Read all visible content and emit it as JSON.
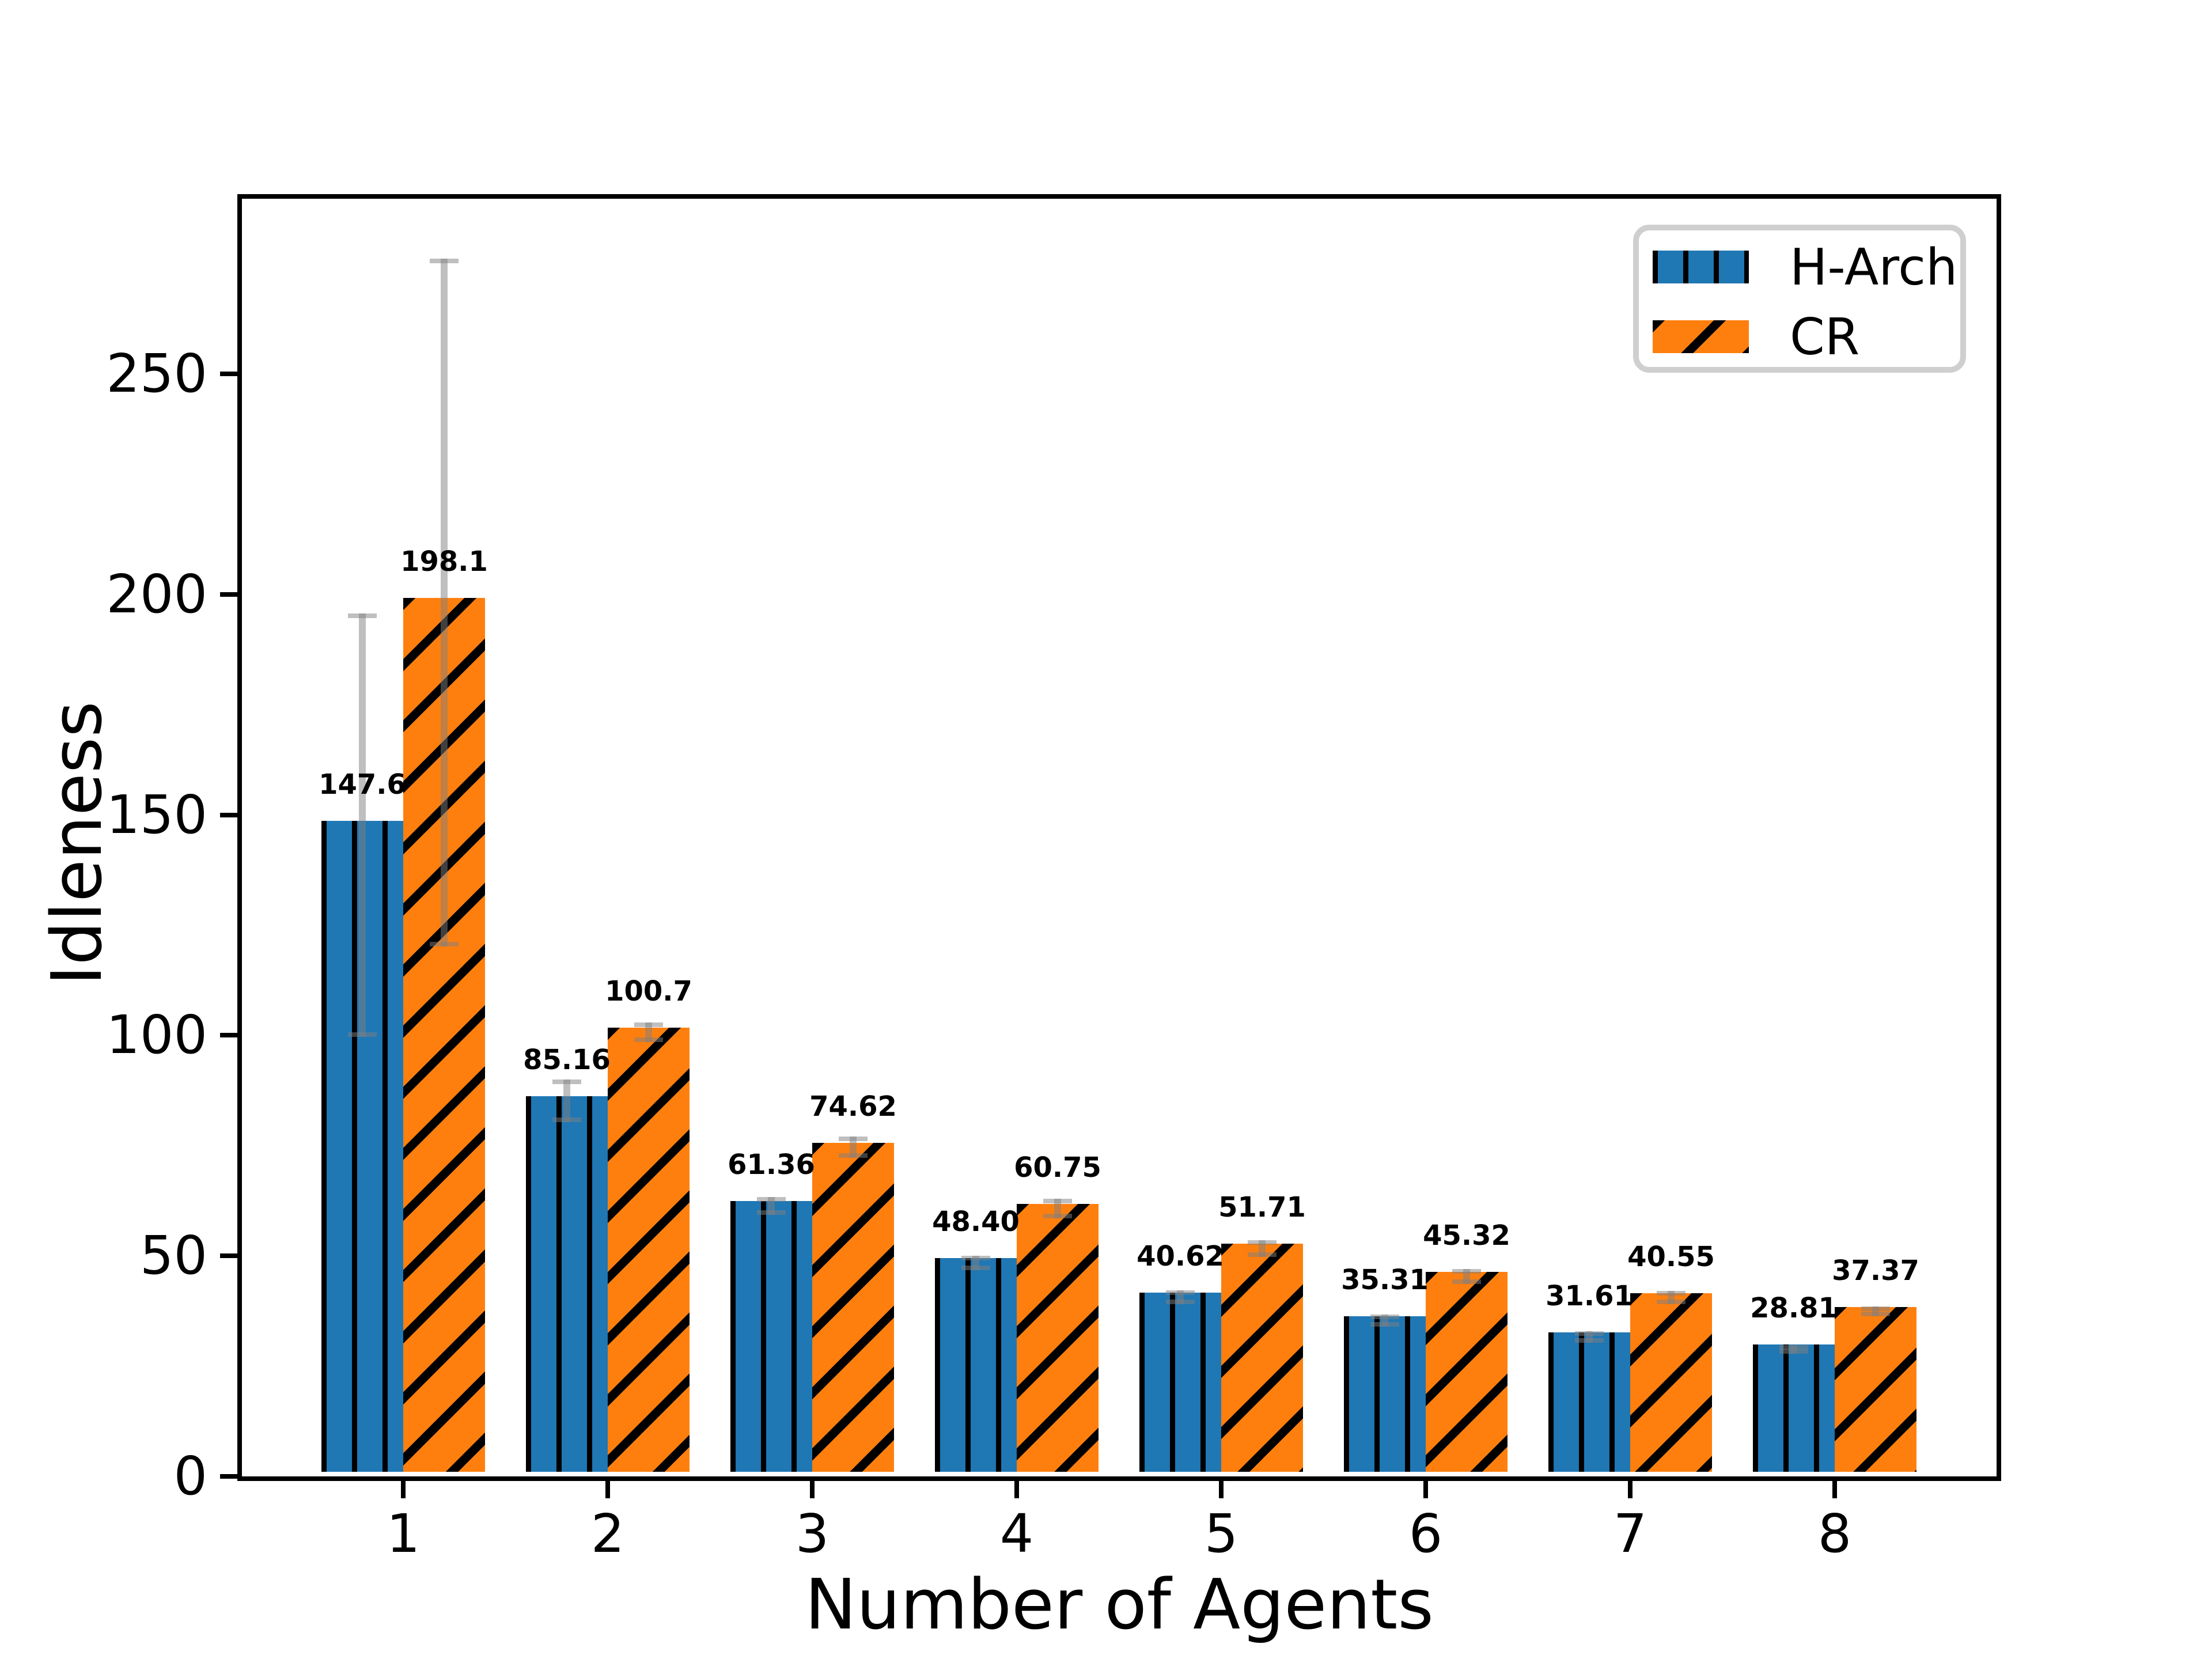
{
  "chart_data": {
    "type": "bar",
    "title": "",
    "xlabel": "Number of Agents",
    "ylabel": "Idleness",
    "categories": [
      "1",
      "2",
      "3",
      "4",
      "5",
      "6",
      "7",
      "8"
    ],
    "series": [
      {
        "name": "H-Arch",
        "color": "#1f77b4",
        "hatch": "vertical",
        "values": [
          147.6,
          85.16,
          61.36,
          48.4,
          40.62,
          35.31,
          31.61,
          28.81
        ],
        "errors": [
          48,
          4.8,
          2.0,
          1.6,
          1.6,
          1.4,
          1.3,
          1.0
        ],
        "labels": [
          "147.6",
          "85.16",
          "61.36",
          "48.40",
          "40.62",
          "35.31",
          "31.61",
          "28.81"
        ]
      },
      {
        "name": "CR",
        "color": "#ff7f0e",
        "hatch": "diagonal",
        "values": [
          198.1,
          100.7,
          74.62,
          60.75,
          51.71,
          45.32,
          40.55,
          37.37
        ],
        "errors": [
          78,
          2.2,
          2.4,
          2.2,
          1.9,
          1.7,
          1.5,
          1.1
        ],
        "labels": [
          "198.1",
          "100.7",
          "74.62",
          "60.75",
          "51.71",
          "45.32",
          "40.55",
          "37.37"
        ]
      }
    ],
    "yticks": [
      0,
      50,
      100,
      150,
      200,
      250
    ],
    "ylim": [
      0,
      289.7
    ],
    "grid": false,
    "legend_position": "upper-right",
    "error_color": "rgba(128,128,128,0.5)",
    "bar_hatch_color": "#000000"
  }
}
